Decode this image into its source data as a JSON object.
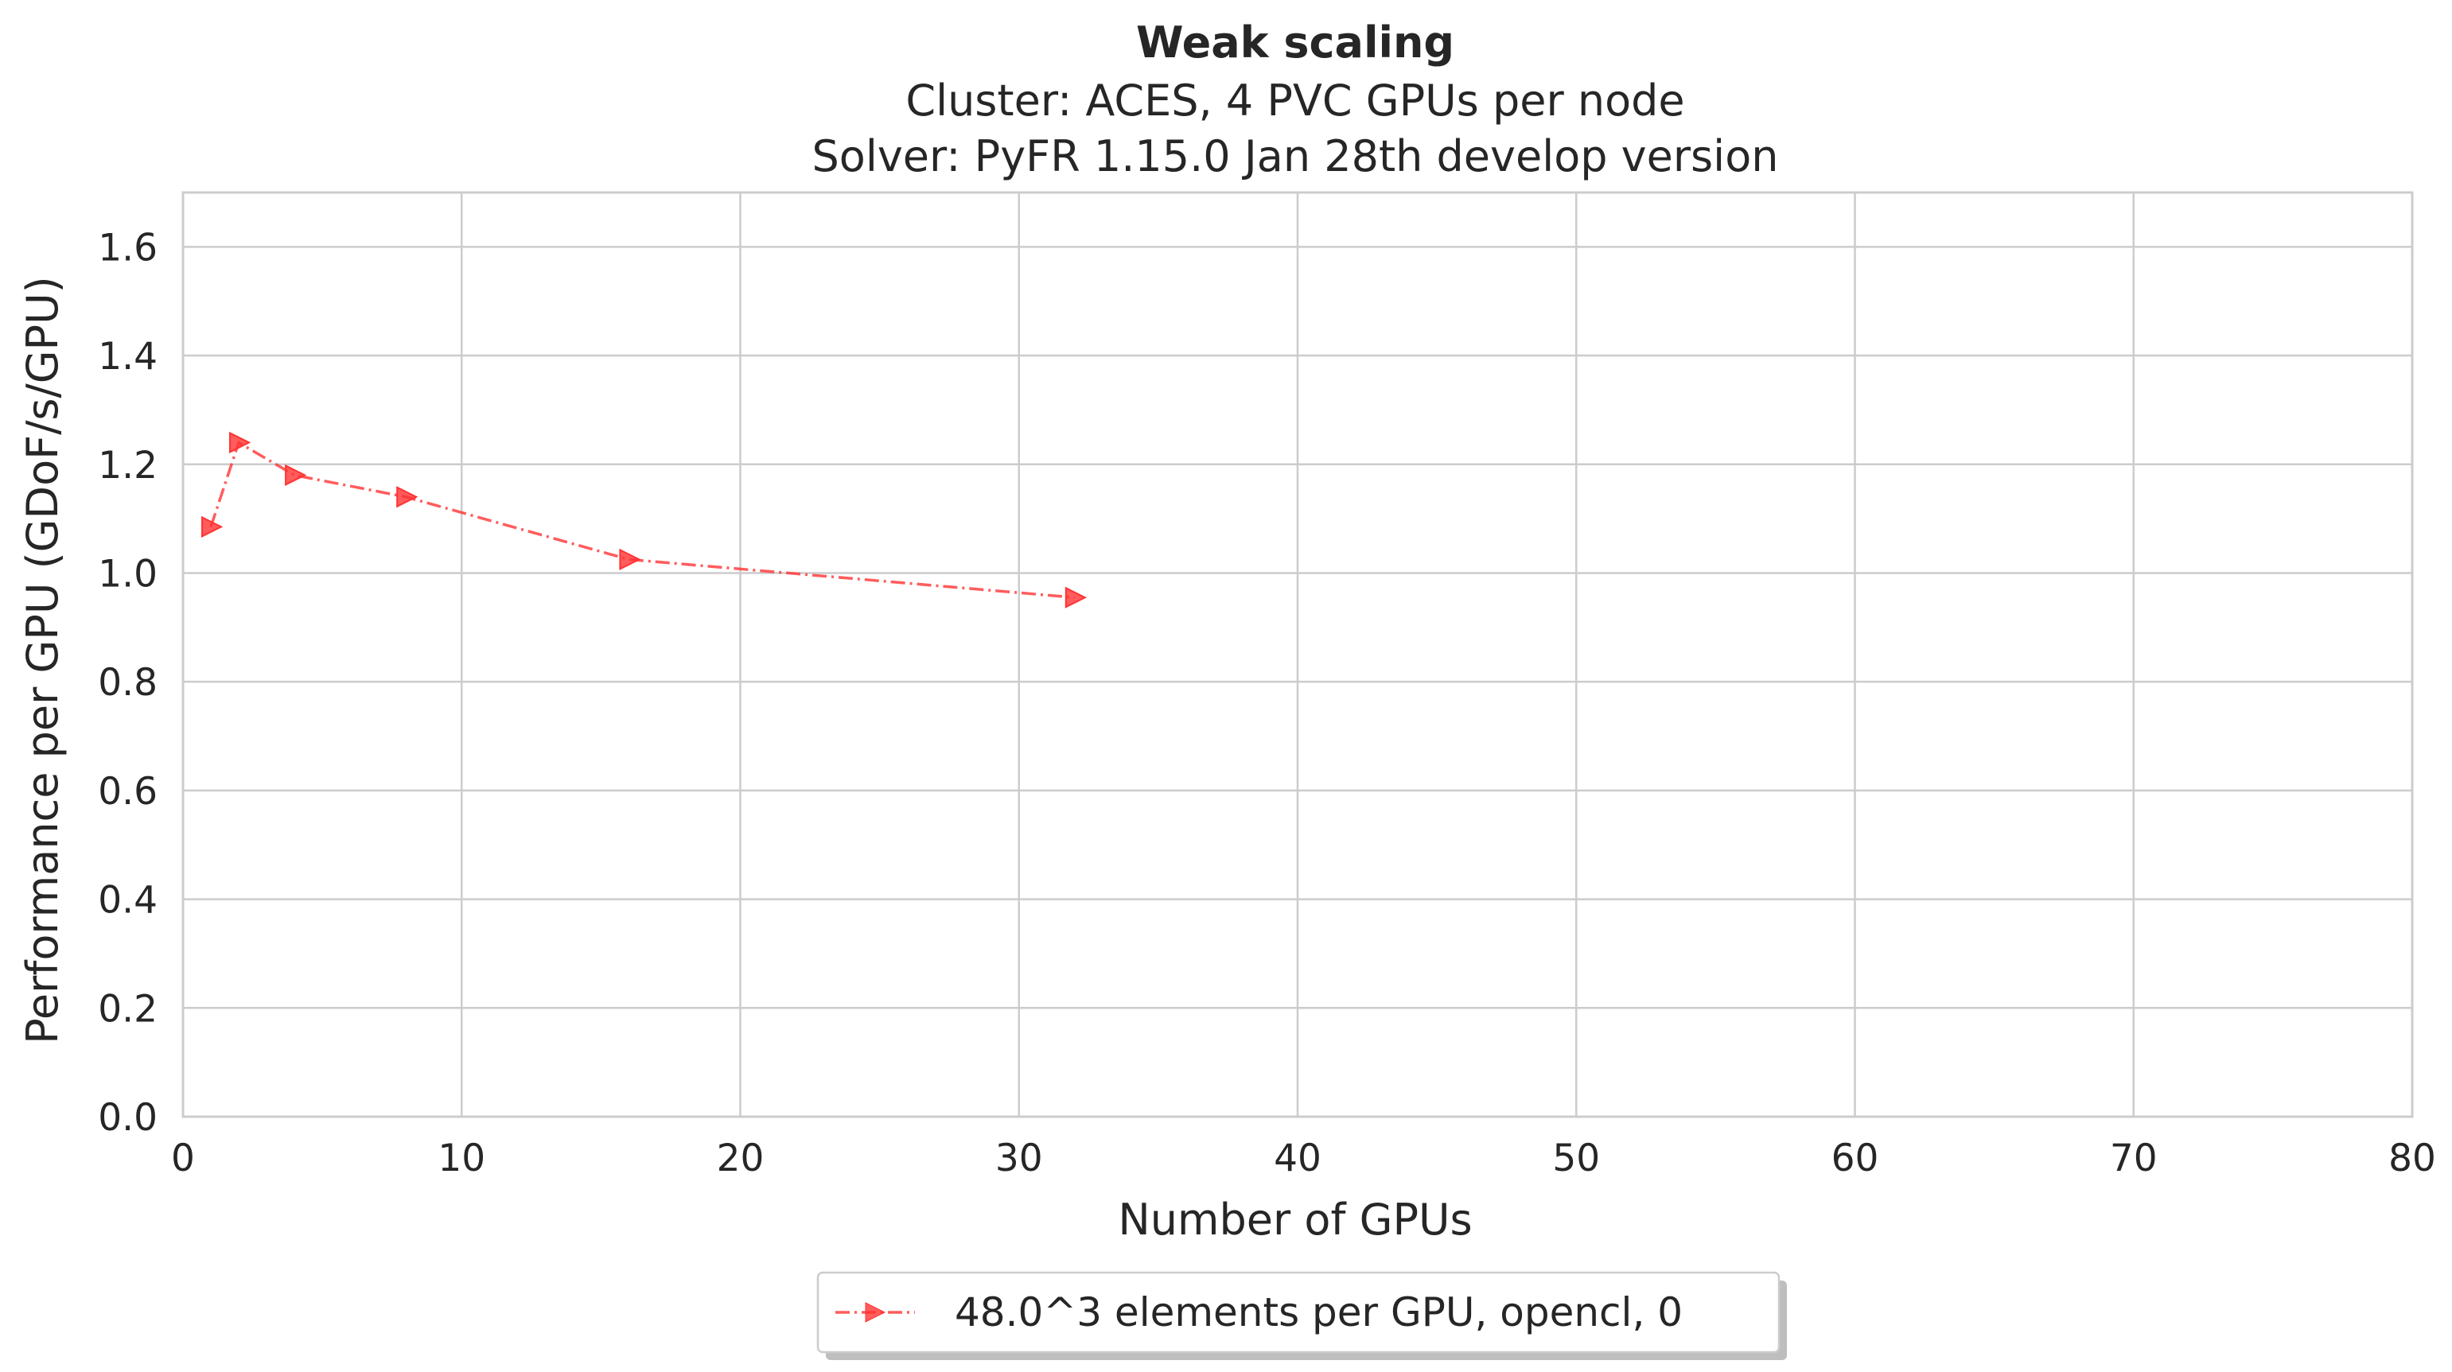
{
  "chart_data": {
    "type": "line",
    "title": "Weak scaling",
    "subtitle_lines": [
      "Cluster: ACES, 4 PVC GPUs per node",
      "Solver: PyFR 1.15.0 Jan 28th develop version"
    ],
    "xlabel": "Number of GPUs",
    "ylabel": "Performance per GPU (GDoF/s/GPU)",
    "xlim": [
      0,
      80
    ],
    "ylim": [
      0,
      1.7
    ],
    "xticks": [
      0,
      10,
      20,
      30,
      40,
      50,
      60,
      70,
      80
    ],
    "xtick_labels": [
      "0",
      "10",
      "20",
      "30",
      "40",
      "50",
      "60",
      "70",
      "80"
    ],
    "yticks": [
      0.0,
      0.2,
      0.4,
      0.6,
      0.8,
      1.0,
      1.2,
      1.4,
      1.6
    ],
    "ytick_labels": [
      "0.0",
      "0.2",
      "0.4",
      "0.6",
      "0.8",
      "1.0",
      "1.2",
      "1.4",
      "1.6"
    ],
    "grid": true,
    "legend_position": "bottom-center",
    "series": [
      {
        "name": "48.0^3 elements per GPU, opencl, 0",
        "color": "#ff3333",
        "line_style": "dash-dot",
        "marker": "triangle-right",
        "x": [
          1,
          2,
          4,
          8,
          16,
          32
        ],
        "y": [
          1.085,
          1.24,
          1.18,
          1.14,
          1.025,
          0.955
        ]
      }
    ]
  }
}
